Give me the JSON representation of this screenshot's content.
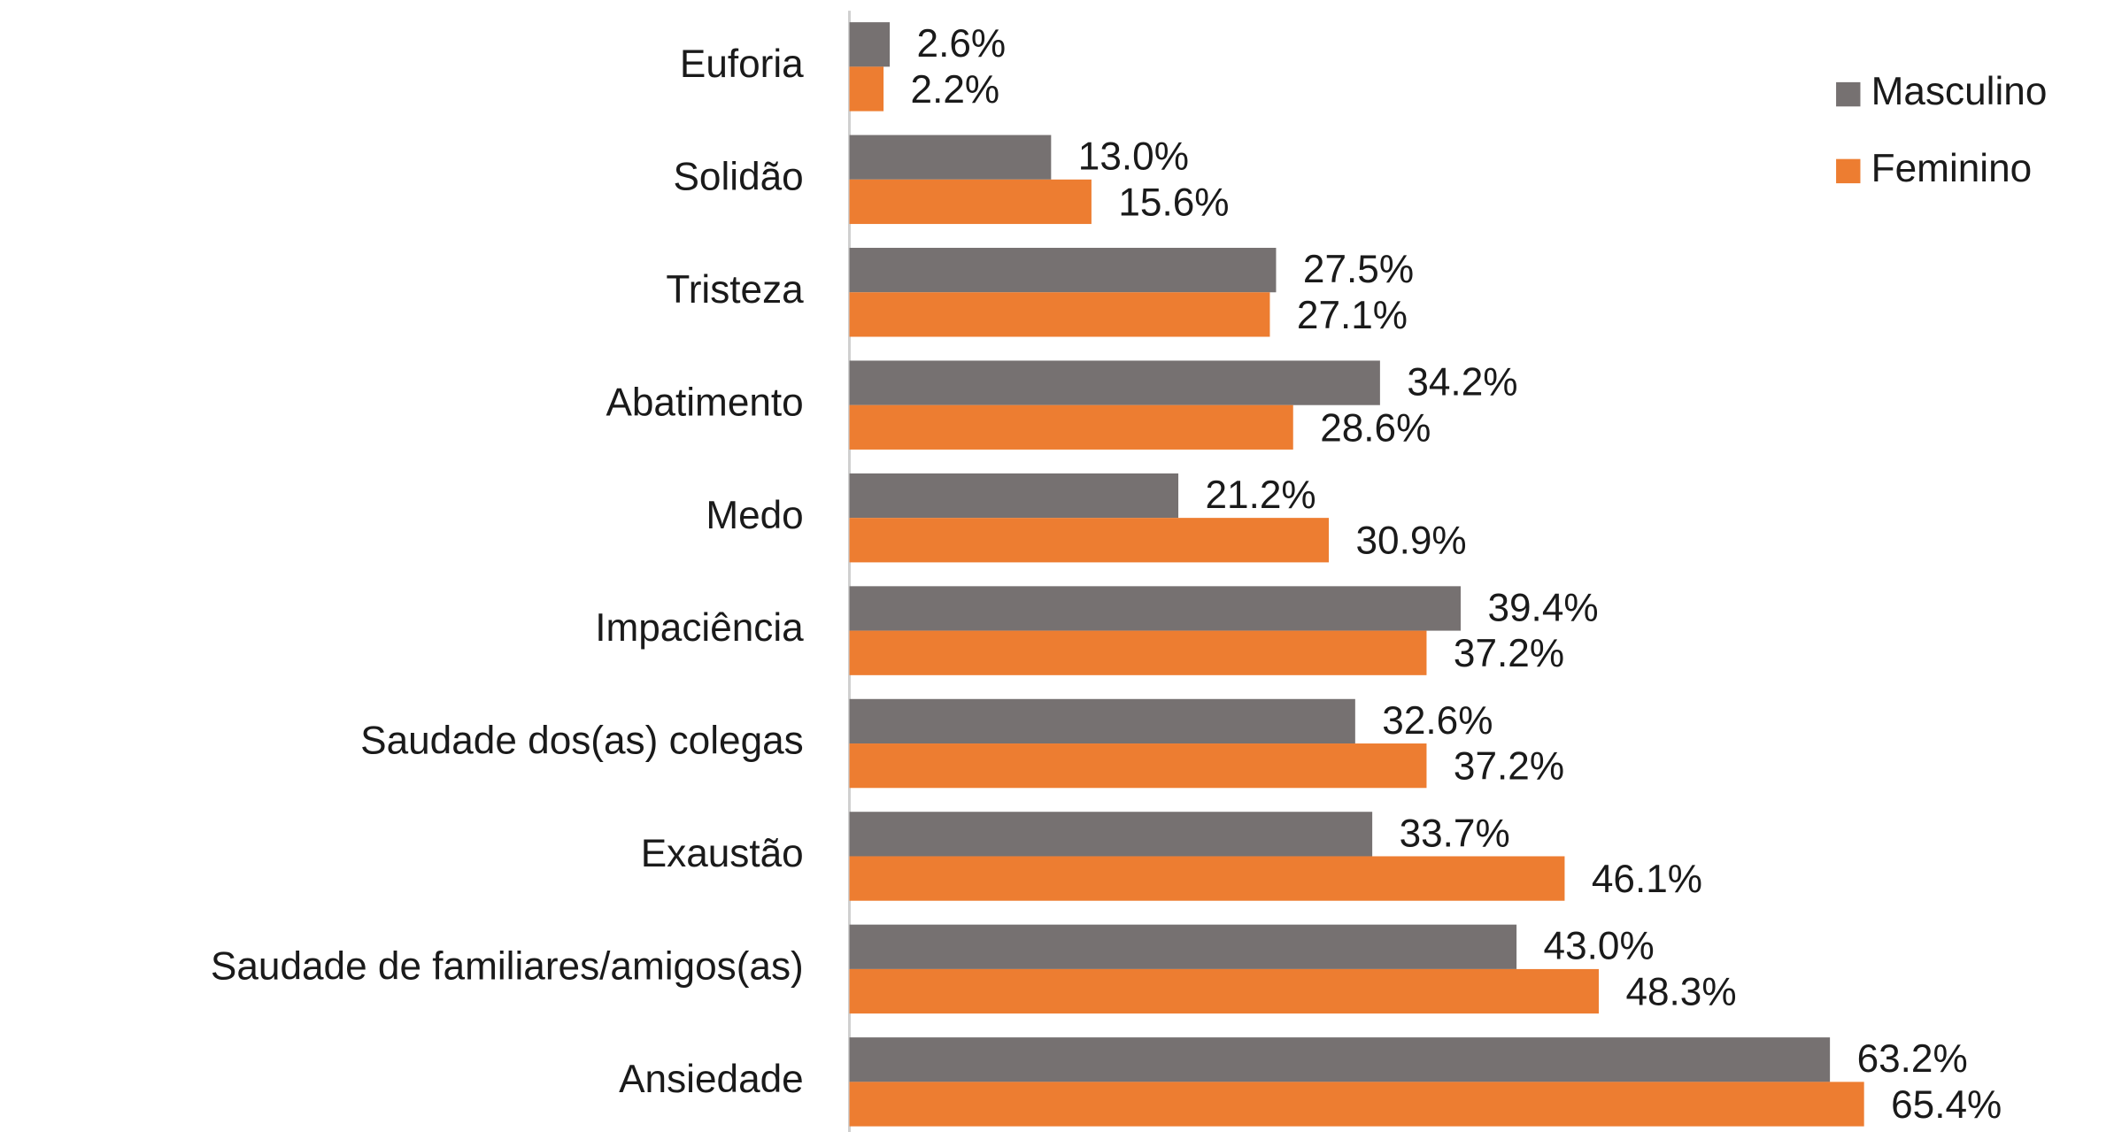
{
  "chart_data": {
    "type": "barh",
    "categories": [
      "Euforia",
      "Solidão",
      "Tristeza",
      "Abatimento",
      "Medo",
      "Impaciência",
      "Saudade dos(as) colegas",
      "Exaustão",
      "Saudade de familiares/amigos(as)",
      "Ansiedade"
    ],
    "series": [
      {
        "name": "Masculino",
        "color": "#767171",
        "values": [
          2.6,
          13.0,
          27.5,
          34.2,
          21.2,
          39.4,
          32.6,
          33.7,
          43.0,
          63.2
        ],
        "value_labels": [
          "2.6%",
          "13.0%",
          "27.5%",
          "34.2%",
          "21.2%",
          "39.4%",
          "32.6%",
          "33.7%",
          "43.0%",
          "63.2%"
        ]
      },
      {
        "name": "Feminino",
        "color": "#ed7d31",
        "values": [
          2.2,
          15.6,
          27.1,
          28.6,
          30.9,
          37.2,
          37.2,
          46.1,
          48.3,
          65.4
        ],
        "value_labels": [
          "2.2%",
          "15.6%",
          "27.1%",
          "28.6%",
          "30.9%",
          "37.2%",
          "37.2%",
          "46.1%",
          "48.3%",
          "65.4%"
        ]
      }
    ],
    "xlim": [
      0,
      70
    ],
    "legend": "top-right"
  }
}
